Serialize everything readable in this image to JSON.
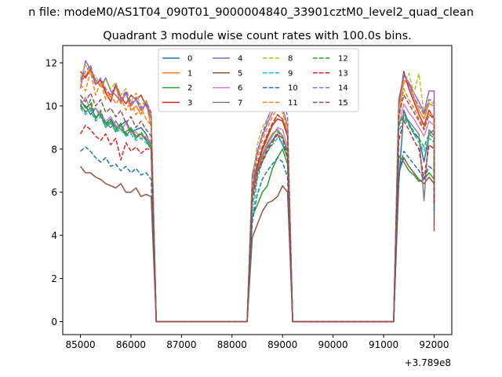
{
  "chart_data": {
    "type": "line",
    "title": "Quadrant 3 module wise count rates with 100.0s bins.",
    "suptitle": "n file: modeM0/AS1T04_090T01_9000004840_33901cztM0_level2_quad_clean",
    "xlabel": "",
    "ylabel": "",
    "x_offset_text": "+3.789e8",
    "xlim": [
      84650,
      92350
    ],
    "ylim": [
      -0.6,
      12.8
    ],
    "xticks": [
      85000,
      86000,
      87000,
      88000,
      89000,
      90000,
      91000,
      92000
    ],
    "xtick_labels": [
      "85000",
      "86000",
      "87000",
      "88000",
      "89000",
      "90000",
      "91000",
      "92000"
    ],
    "yticks": [
      0,
      2,
      4,
      6,
      8,
      10,
      12
    ],
    "ytick_labels": [
      "0",
      "2",
      "4",
      "6",
      "8",
      "10",
      "12"
    ],
    "grid": false,
    "legend": {
      "placement": "upper center",
      "columns": 4
    },
    "series": [
      {
        "name": "0",
        "color": "#1f77b4",
        "dash": "solid",
        "values": [
          10.2,
          10.0,
          9.6,
          9.9,
          9.5,
          9.2,
          9.4,
          9.0,
          9.1,
          9.3,
          8.8,
          8.9,
          9.0,
          8.7,
          8.2,
          0,
          0,
          0,
          0,
          0,
          0,
          0,
          0,
          0,
          0,
          0,
          0,
          0,
          0,
          0,
          0,
          0,
          0,
          0,
          6.6,
          7.2,
          7.6,
          8.1,
          8.4,
          8.7,
          8.2,
          7.6,
          0,
          0,
          0,
          0,
          0,
          0,
          0,
          0,
          0,
          0,
          0,
          0,
          0,
          0,
          0,
          0,
          0,
          0,
          0,
          0,
          0,
          6.4,
          9.8,
          9.2,
          8.7,
          8.5,
          7.4,
          8.7,
          8.9,
          5.3
        ]
      },
      {
        "name": "1",
        "color": "#ff7f0e",
        "dash": "solid",
        "values": [
          11.1,
          11.4,
          11.8,
          11.0,
          11.2,
          10.7,
          10.4,
          10.9,
          10.1,
          10.6,
          9.8,
          10.0,
          9.6,
          10.2,
          9.0,
          0,
          0,
          0,
          0,
          0,
          0,
          0,
          0,
          0,
          0,
          0,
          0,
          0,
          0,
          0,
          0,
          0,
          0,
          0,
          6.0,
          7.1,
          7.9,
          8.5,
          9.1,
          9.6,
          9.4,
          8.8,
          0,
          0,
          0,
          0,
          0,
          0,
          0,
          0,
          0,
          0,
          0,
          0,
          0,
          0,
          0,
          0,
          0,
          0,
          0,
          0,
          0,
          9.5,
          11.2,
          11.0,
          10.4,
          9.8,
          9.4,
          10.1,
          10.0,
          7.6
        ]
      },
      {
        "name": "2",
        "color": "#2ca02c",
        "dash": "solid",
        "values": [
          10.3,
          9.9,
          10.1,
          9.4,
          9.7,
          9.0,
          9.3,
          8.8,
          9.1,
          8.6,
          8.9,
          8.5,
          8.7,
          8.4,
          8.1,
          0,
          0,
          0,
          0,
          0,
          0,
          0,
          0,
          0,
          0,
          0,
          0,
          0,
          0,
          0,
          0,
          0,
          0,
          0,
          4.9,
          5.4,
          6.0,
          6.3,
          7.1,
          7.6,
          8.0,
          7.3,
          0,
          0,
          0,
          0,
          0,
          0,
          0,
          0,
          0,
          0,
          0,
          0,
          0,
          0,
          0,
          0,
          0,
          0,
          0,
          0,
          0,
          7.7,
          7.4,
          7.0,
          6.8,
          6.5,
          6.6,
          6.9,
          6.6,
          5.7
        ]
      },
      {
        "name": "3",
        "color": "#d62728",
        "dash": "solid",
        "values": [
          11.6,
          11.3,
          11.7,
          11.0,
          11.2,
          10.6,
          10.2,
          11.0,
          10.4,
          10.1,
          10.5,
          10.3,
          10.5,
          10.0,
          9.6,
          0,
          0,
          0,
          0,
          0,
          0,
          0,
          0,
          0,
          0,
          0,
          0,
          0,
          0,
          0,
          0,
          0,
          0,
          0,
          6.2,
          7.2,
          8.0,
          8.6,
          9.1,
          9.4,
          9.3,
          8.6,
          0,
          0,
          0,
          0,
          0,
          0,
          0,
          0,
          0,
          0,
          0,
          0,
          0,
          0,
          0,
          0,
          0,
          0,
          0,
          0,
          0,
          10.0,
          11.6,
          10.8,
          10.2,
          9.6,
          9.1,
          9.8,
          9.4,
          6.9
        ]
      },
      {
        "name": "4",
        "color": "#9467bd",
        "dash": "solid",
        "values": [
          10.8,
          12.1,
          11.7,
          11.2,
          10.9,
          11.3,
          10.7,
          10.5,
          10.2,
          10.6,
          10.0,
          10.3,
          9.8,
          10.1,
          9.4,
          0,
          0,
          0,
          0,
          0,
          0,
          0,
          0,
          0,
          0,
          0,
          0,
          0,
          0,
          0,
          0,
          0,
          0,
          0,
          6.8,
          7.9,
          8.6,
          9.2,
          9.7,
          10.1,
          9.9,
          9.1,
          0,
          0,
          0,
          0,
          0,
          0,
          0,
          0,
          0,
          0,
          0,
          0,
          0,
          0,
          0,
          0,
          0,
          0,
          0,
          0,
          0,
          10.3,
          11.4,
          11.1,
          10.6,
          10.2,
          9.7,
          10.7,
          10.7,
          8.1
        ]
      },
      {
        "name": "5",
        "color": "#8c564b",
        "dash": "solid",
        "values": [
          7.2,
          6.9,
          6.9,
          6.7,
          6.6,
          6.4,
          6.3,
          6.2,
          6.4,
          6.0,
          6.0,
          6.2,
          5.8,
          5.9,
          5.8,
          0,
          0,
          0,
          0,
          0,
          0,
          0,
          0,
          0,
          0,
          0,
          0,
          0,
          0,
          0,
          0,
          0,
          0,
          0,
          3.9,
          4.5,
          5.1,
          5.5,
          5.6,
          5.8,
          6.3,
          6.0,
          0,
          0,
          0,
          0,
          0,
          0,
          0,
          0,
          0,
          0,
          0,
          0,
          0,
          0,
          0,
          0,
          0,
          0,
          0,
          0,
          0,
          6.9,
          7.6,
          7.2,
          6.9,
          6.6,
          6.4,
          6.7,
          6.4,
          4.2
        ]
      },
      {
        "name": "6",
        "color": "#e377c2",
        "dash": "solid",
        "values": [
          10.0,
          10.4,
          9.8,
          9.9,
          9.6,
          9.3,
          9.5,
          9.1,
          8.9,
          9.2,
          8.7,
          8.8,
          8.5,
          8.6,
          8.3,
          0,
          0,
          0,
          0,
          0,
          0,
          0,
          0,
          0,
          0,
          0,
          0,
          0,
          0,
          0,
          0,
          0,
          0,
          0,
          5.8,
          6.9,
          7.6,
          8.2,
          8.6,
          9.0,
          8.9,
          8.1,
          0,
          0,
          0,
          0,
          0,
          0,
          0,
          0,
          0,
          0,
          0,
          0,
          0,
          0,
          0,
          0,
          0,
          0,
          0,
          0,
          0,
          9.0,
          10.1,
          9.7,
          9.4,
          9.0,
          8.6,
          9.3,
          9.1,
          6.3
        ]
      },
      {
        "name": "7",
        "color": "#7f7f7f",
        "dash": "solid",
        "values": [
          10.1,
          9.7,
          9.9,
          9.5,
          9.6,
          9.2,
          9.0,
          9.3,
          8.9,
          8.8,
          9.0,
          8.6,
          8.7,
          8.5,
          8.2,
          0,
          0,
          0,
          0,
          0,
          0,
          0,
          0,
          0,
          0,
          0,
          0,
          0,
          0,
          0,
          0,
          0,
          0,
          0,
          6.3,
          7.0,
          7.7,
          8.3,
          8.7,
          8.9,
          8.6,
          7.9,
          0,
          0,
          0,
          0,
          0,
          0,
          0,
          0,
          0,
          0,
          0,
          0,
          0,
          0,
          0,
          0,
          0,
          0,
          0,
          0,
          0,
          9.2,
          9.6,
          9.3,
          9.0,
          8.7,
          5.6,
          8.9,
          8.6,
          5.9
        ]
      },
      {
        "name": "8",
        "color": "#bcbd22",
        "dash": "dashed",
        "values": [
          11.3,
          11.9,
          11.5,
          11.4,
          10.9,
          11.2,
          10.8,
          11.1,
          10.5,
          10.8,
          10.2,
          10.6,
          10.0,
          10.3,
          9.6,
          0,
          0,
          0,
          0,
          0,
          0,
          0,
          0,
          0,
          0,
          0,
          0,
          0,
          0,
          0,
          0,
          0,
          0,
          0,
          6.5,
          8.2,
          9.0,
          9.4,
          9.9,
          10.0,
          9.8,
          9.0,
          0,
          0,
          0,
          0,
          0,
          0,
          0,
          0,
          0,
          0,
          0,
          0,
          0,
          0,
          0,
          0,
          0,
          0,
          0,
          0,
          0,
          9.8,
          11.0,
          11.5,
          10.6,
          11.5,
          9.6,
          10.2,
          10.1,
          7.8
        ]
      },
      {
        "name": "9",
        "color": "#17becf",
        "dash": "dashed",
        "values": [
          9.9,
          9.6,
          9.8,
          9.3,
          9.5,
          9.0,
          9.2,
          8.8,
          8.9,
          8.6,
          8.7,
          8.4,
          8.5,
          8.3,
          8.0,
          0,
          0,
          0,
          0,
          0,
          0,
          0,
          0,
          0,
          0,
          0,
          0,
          0,
          0,
          0,
          0,
          0,
          0,
          0,
          4.8,
          6.6,
          7.4,
          7.9,
          8.2,
          8.5,
          8.3,
          7.6,
          0,
          0,
          0,
          0,
          0,
          0,
          0,
          0,
          0,
          0,
          0,
          0,
          0,
          0,
          0,
          0,
          0,
          0,
          0,
          0,
          0,
          8.8,
          9.4,
          9.1,
          8.7,
          8.3,
          7.9,
          8.5,
          8.3,
          5.8
        ]
      },
      {
        "name": "10",
        "color": "#1f77b4",
        "dash": "dashed",
        "values": [
          7.9,
          8.1,
          7.9,
          7.6,
          7.4,
          7.6,
          7.2,
          7.3,
          7.0,
          7.2,
          6.9,
          7.1,
          6.8,
          6.9,
          6.6,
          0,
          0,
          0,
          0,
          0,
          0,
          0,
          0,
          0,
          0,
          0,
          0,
          0,
          0,
          0,
          0,
          0,
          0,
          0,
          4.6,
          5.9,
          6.6,
          7.0,
          7.3,
          7.6,
          7.4,
          6.7,
          0,
          0,
          0,
          0,
          0,
          0,
          0,
          0,
          0,
          0,
          0,
          0,
          0,
          0,
          0,
          0,
          0,
          0,
          0,
          0,
          0,
          6.8,
          7.9,
          7.6,
          7.3,
          7.0,
          6.6,
          7.2,
          7.0,
          5.0
        ]
      },
      {
        "name": "11",
        "color": "#ff7f0e",
        "dash": "dashed",
        "values": [
          11.0,
          10.7,
          11.6,
          10.5,
          11.1,
          10.3,
          10.6,
          10.1,
          10.4,
          9.8,
          10.2,
          9.6,
          9.9,
          9.4,
          9.1,
          0,
          0,
          0,
          0,
          0,
          0,
          0,
          0,
          0,
          0,
          0,
          0,
          0,
          0,
          0,
          0,
          0,
          0,
          0,
          6.1,
          7.6,
          8.4,
          9.0,
          9.5,
          9.9,
          9.7,
          8.9,
          0,
          0,
          0,
          0,
          0,
          0,
          0,
          0,
          0,
          0,
          0,
          0,
          0,
          0,
          0,
          0,
          0,
          0,
          0,
          0,
          0,
          9.3,
          10.8,
          10.3,
          9.9,
          9.4,
          9.0,
          9.7,
          9.5,
          7.1
        ]
      },
      {
        "name": "12",
        "color": "#2ca02c",
        "dash": "dashed",
        "values": [
          10.0,
          9.7,
          10.3,
          9.4,
          9.8,
          9.1,
          9.4,
          8.9,
          9.2,
          8.7,
          9.0,
          8.5,
          8.8,
          8.4,
          8.0,
          0,
          0,
          0,
          0,
          0,
          0,
          0,
          0,
          0,
          0,
          0,
          0,
          0,
          0,
          0,
          0,
          0,
          0,
          0,
          5.4,
          6.8,
          7.5,
          8.0,
          8.4,
          8.8,
          8.6,
          7.8,
          0,
          0,
          0,
          0,
          0,
          0,
          0,
          0,
          0,
          0,
          0,
          0,
          0,
          0,
          0,
          0,
          0,
          0,
          0,
          0,
          0,
          9.1,
          9.5,
          9.2,
          8.8,
          8.5,
          8.1,
          8.7,
          8.5,
          6.0
        ]
      },
      {
        "name": "13",
        "color": "#d62728",
        "dash": "dashed",
        "values": [
          8.7,
          9.1,
          8.9,
          8.6,
          8.4,
          8.7,
          8.2,
          8.5,
          7.5,
          8.3,
          7.9,
          8.1,
          7.8,
          8.0,
          8.0,
          0,
          0,
          0,
          0,
          0,
          0,
          0,
          0,
          0,
          0,
          0,
          0,
          0,
          0,
          0,
          0,
          0,
          0,
          0,
          5.7,
          6.9,
          7.4,
          7.9,
          8.3,
          8.7,
          8.5,
          7.6,
          0,
          0,
          0,
          0,
          0,
          0,
          0,
          0,
          0,
          0,
          0,
          0,
          0,
          0,
          0,
          0,
          0,
          0,
          0,
          0,
          0,
          8.4,
          9.3,
          8.9,
          8.4,
          8.0,
          6.6,
          8.2,
          8.0,
          5.5
        ]
      },
      {
        "name": "14",
        "color": "#9467bd",
        "dash": "dashed",
        "values": [
          11.2,
          11.6,
          11.9,
          11.0,
          11.3,
          10.8,
          10.5,
          11.0,
          10.3,
          10.7,
          10.1,
          10.4,
          9.9,
          10.2,
          9.7,
          0,
          0,
          0,
          0,
          0,
          0,
          0,
          0,
          0,
          0,
          0,
          0,
          0,
          0,
          0,
          0,
          0,
          0,
          0,
          6.4,
          7.8,
          8.7,
          9.4,
          10.0,
          10.8,
          10.5,
          9.5,
          0,
          0,
          0,
          0,
          0,
          0,
          0,
          0,
          0,
          0,
          0,
          0,
          0,
          0,
          0,
          0,
          0,
          0,
          0,
          0,
          0,
          10.1,
          11.5,
          11.0,
          10.4,
          10.0,
          9.6,
          10.3,
          10.2,
          7.7
        ]
      },
      {
        "name": "15",
        "color": "#8c564b",
        "dash": "dashed",
        "values": [
          10.5,
          10.2,
          10.6,
          10.0,
          10.3,
          9.7,
          9.9,
          9.5,
          9.8,
          9.2,
          9.5,
          9.0,
          9.3,
          8.9,
          8.6,
          0,
          0,
          0,
          0,
          0,
          0,
          0,
          0,
          0,
          0,
          0,
          0,
          0,
          0,
          0,
          0,
          0,
          0,
          0,
          6.0,
          7.3,
          8.1,
          8.7,
          9.2,
          9.6,
          9.4,
          8.6,
          0,
          0,
          0,
          0,
          0,
          0,
          0,
          0,
          0,
          0,
          0,
          0,
          0,
          0,
          0,
          0,
          0,
          0,
          0,
          0,
          0,
          9.6,
          10.5,
          10.1,
          9.7,
          9.3,
          8.9,
          9.6,
          9.4,
          7.0
        ]
      }
    ],
    "x_values": [
      85000,
      85100,
      85200,
      85300,
      85400,
      85500,
      85600,
      85700,
      85800,
      85900,
      86000,
      86100,
      86200,
      86300,
      86400,
      86500,
      86600,
      86700,
      86800,
      86900,
      87000,
      87100,
      87200,
      87300,
      87400,
      87500,
      87600,
      87700,
      87800,
      87900,
      88000,
      88100,
      88200,
      88300,
      88400,
      88500,
      88600,
      88700,
      88800,
      88900,
      89000,
      89100,
      89200,
      89300,
      89400,
      89500,
      89600,
      89700,
      89800,
      89900,
      90000,
      90100,
      90200,
      90300,
      90400,
      90500,
      90600,
      90700,
      90800,
      90900,
      91000,
      91100,
      91200,
      91300,
      91400,
      91500,
      91600,
      91700,
      91800,
      91900,
      92000,
      92000
    ]
  }
}
